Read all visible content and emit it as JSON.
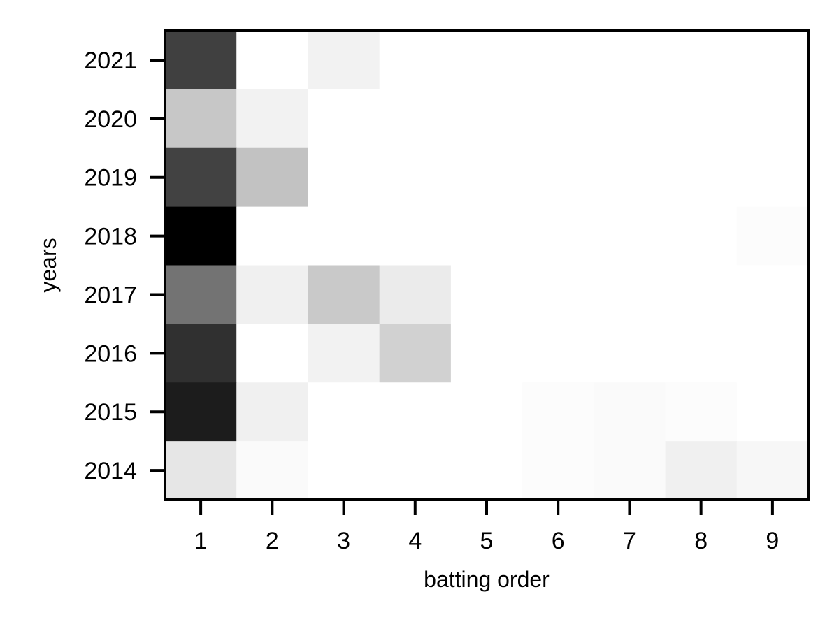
{
  "chart_data": {
    "type": "heatmap",
    "title": "",
    "xlabel": "batting order",
    "ylabel": "years",
    "x": [
      "1",
      "2",
      "3",
      "4",
      "5",
      "6",
      "7",
      "8",
      "9"
    ],
    "y": [
      "2021",
      "2020",
      "2019",
      "2018",
      "2017",
      "2016",
      "2015",
      "2014"
    ],
    "colormap": "greys",
    "value_range": [
      0,
      1
    ],
    "values": [
      [
        0.75,
        0.0,
        0.05,
        0.0,
        0.0,
        0.0,
        0.0,
        0.0,
        0.0
      ],
      [
        0.22,
        0.05,
        0.0,
        0.0,
        0.0,
        0.0,
        0.0,
        0.0,
        0.0
      ],
      [
        0.74,
        0.24,
        0.0,
        0.0,
        0.0,
        0.0,
        0.0,
        0.0,
        0.0
      ],
      [
        1.0,
        0.0,
        0.0,
        0.0,
        0.0,
        0.0,
        0.0,
        0.0,
        0.01
      ],
      [
        0.55,
        0.06,
        0.21,
        0.08,
        0.0,
        0.0,
        0.0,
        0.0,
        0.0
      ],
      [
        0.81,
        0.0,
        0.05,
        0.18,
        0.0,
        0.0,
        0.0,
        0.0,
        0.0
      ],
      [
        0.89,
        0.06,
        0.0,
        0.0,
        0.0,
        0.01,
        0.02,
        0.01,
        0.0
      ],
      [
        0.1,
        0.02,
        0.0,
        0.0,
        0.0,
        0.01,
        0.02,
        0.06,
        0.03
      ]
    ],
    "grid": false,
    "legend": "none"
  }
}
